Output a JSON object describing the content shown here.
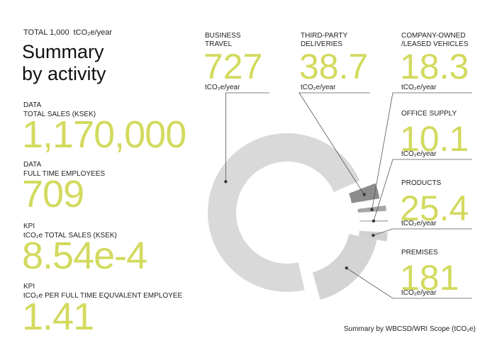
{
  "header": {
    "total_label": "TOTAL 1,000",
    "total_unit": "tCO₂e/year",
    "title_line1": "Summary",
    "title_line2": "by activity"
  },
  "stats": [
    {
      "label_top": "DATA",
      "label_bottom": "TOTAL SALES (KSEK)",
      "value": "1,170,000"
    },
    {
      "label_top": "DATA",
      "label_bottom": "FULL TIME EMPLOYEES",
      "value": "709"
    },
    {
      "label_top": "KPI",
      "label_bottom": "tCO₂e TOTAL SALES (KSEK)",
      "value": "8.54e-4"
    },
    {
      "label_top": "KPI",
      "label_bottom": "tCO₂e PER FULL TIME EQUVALENT EMPLOYEE",
      "value": "1.41"
    }
  ],
  "footer": "Summary by WBCSD/WRI Scope (tCO₂e)",
  "chart_data": {
    "type": "pie",
    "variant": "donut",
    "unit": "tCO₂e/year",
    "categories": [
      "BUSINESS TRAVEL",
      "THIRD-PARTY DELIVERIES",
      "COMPANY-OWNED /LEASED VEHICLES",
      "OFFICE SUPPLY",
      "PRODUCTS",
      "PREMISES"
    ],
    "values": [
      727,
      38.7,
      18.3,
      10.1,
      25.4,
      181
    ],
    "value_labels": [
      "727",
      "38.7",
      "18.3",
      "10.1",
      "25.4",
      "181"
    ],
    "label_lines": [
      [
        "BUSINESS",
        "TRAVEL"
      ],
      [
        "THIRD-PARTY",
        "DELIVERIES"
      ],
      [
        "COMPANY-OWNED",
        "/LEASED VEHICLES"
      ],
      [
        "OFFICE SUPPLY"
      ],
      [
        "PRODUCTS"
      ],
      [
        "PREMISES"
      ]
    ],
    "colors": [
      "#d9d9d9",
      "#8c8c8c",
      "#a6a6a6",
      "#bdbdbd",
      "#d0d0d0",
      "#d4d4d4"
    ],
    "leader_color": "#555555",
    "text_color": "#222222",
    "value_color": "#d3da5e"
  }
}
